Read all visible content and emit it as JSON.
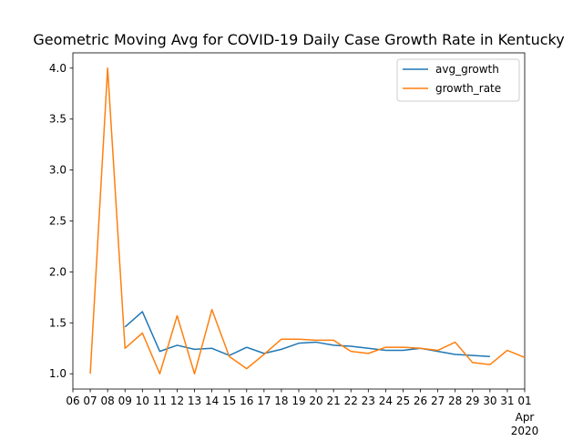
{
  "chart_data": {
    "type": "line",
    "title": "Geometric Moving Avg for COVID-19 Daily Case Growth Rate in Kentucky",
    "xlabel": "",
    "ylabel": "",
    "x": [
      "2020-03-07",
      "2020-03-08",
      "2020-03-09",
      "2020-03-10",
      "2020-03-11",
      "2020-03-12",
      "2020-03-13",
      "2020-03-14",
      "2020-03-15",
      "2020-03-16",
      "2020-03-17",
      "2020-03-18",
      "2020-03-19",
      "2020-03-20",
      "2020-03-21",
      "2020-03-22",
      "2020-03-23",
      "2020-03-24",
      "2020-03-25",
      "2020-03-26",
      "2020-03-27",
      "2020-03-28",
      "2020-03-29",
      "2020-03-30",
      "2020-03-31",
      "2020-04-01"
    ],
    "xlim": [
      "2020-03-06",
      "2020-04-01"
    ],
    "x_tick_labels": [
      "06",
      "07",
      "08",
      "09",
      "10",
      "11",
      "12",
      "13",
      "14",
      "15",
      "16",
      "17",
      "18",
      "19",
      "20",
      "21",
      "22",
      "23",
      "24",
      "25",
      "26",
      "27",
      "28",
      "29",
      "30",
      "31",
      "01"
    ],
    "x_secondary_label": [
      "Apr",
      "2020"
    ],
    "ylim": [
      0.85,
      4.15
    ],
    "y_ticks": [
      1.0,
      1.5,
      2.0,
      2.5,
      3.0,
      3.5,
      4.0
    ],
    "y_tick_labels": [
      "1.0",
      "1.5",
      "2.0",
      "2.5",
      "3.0",
      "3.5",
      "4.0"
    ],
    "grid": false,
    "legend_position": "top-right",
    "series": [
      {
        "name": "avg_growth",
        "color": "#1f77b4",
        "values": [
          null,
          null,
          1.46,
          1.61,
          1.22,
          1.28,
          1.24,
          1.25,
          1.18,
          1.26,
          1.2,
          1.24,
          1.3,
          1.31,
          1.28,
          1.27,
          1.25,
          1.23,
          1.23,
          1.25,
          1.22,
          1.19,
          1.18,
          1.17,
          null,
          null
        ]
      },
      {
        "name": "growth_rate",
        "color": "#ff7f0e",
        "values": [
          1.0,
          4.0,
          1.25,
          1.4,
          1.0,
          1.57,
          1.0,
          1.63,
          1.17,
          1.05,
          1.19,
          1.34,
          1.34,
          1.33,
          1.33,
          1.22,
          1.2,
          1.26,
          1.26,
          1.25,
          1.23,
          1.31,
          1.11,
          1.09,
          1.23,
          1.16
        ]
      }
    ]
  }
}
